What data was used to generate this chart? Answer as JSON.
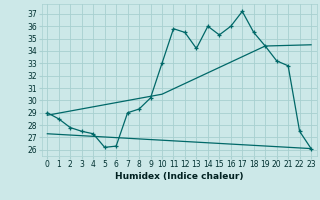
{
  "xlabel": "Humidex (Indice chaleur)",
  "bg_color": "#cce8e8",
  "grid_color": "#a8d0d0",
  "line_color": "#006868",
  "xlim": [
    -0.5,
    23.5
  ],
  "ylim": [
    25.5,
    37.8
  ],
  "yticks": [
    26,
    27,
    28,
    29,
    30,
    31,
    32,
    33,
    34,
    35,
    36,
    37
  ],
  "xticks": [
    0,
    1,
    2,
    3,
    4,
    5,
    6,
    7,
    8,
    9,
    10,
    11,
    12,
    13,
    14,
    15,
    16,
    17,
    18,
    19,
    20,
    21,
    22,
    23
  ],
  "line1_x": [
    0,
    1,
    2,
    3,
    4,
    5,
    6,
    7,
    8,
    9,
    10,
    11,
    12,
    13,
    14,
    15,
    16,
    17,
    18,
    19,
    20,
    21,
    22,
    23
  ],
  "line1_y": [
    29.0,
    28.5,
    27.8,
    27.5,
    27.3,
    26.2,
    26.3,
    29.0,
    29.3,
    30.2,
    33.0,
    35.8,
    35.5,
    34.2,
    36.0,
    35.3,
    36.0,
    37.2,
    35.5,
    34.4,
    33.2,
    32.8,
    27.5,
    26.1
  ],
  "line2_x": [
    0,
    10,
    19,
    23
  ],
  "line2_y": [
    28.8,
    30.5,
    34.4,
    34.5
  ],
  "line3_x": [
    0,
    23
  ],
  "line3_y": [
    27.3,
    26.1
  ]
}
